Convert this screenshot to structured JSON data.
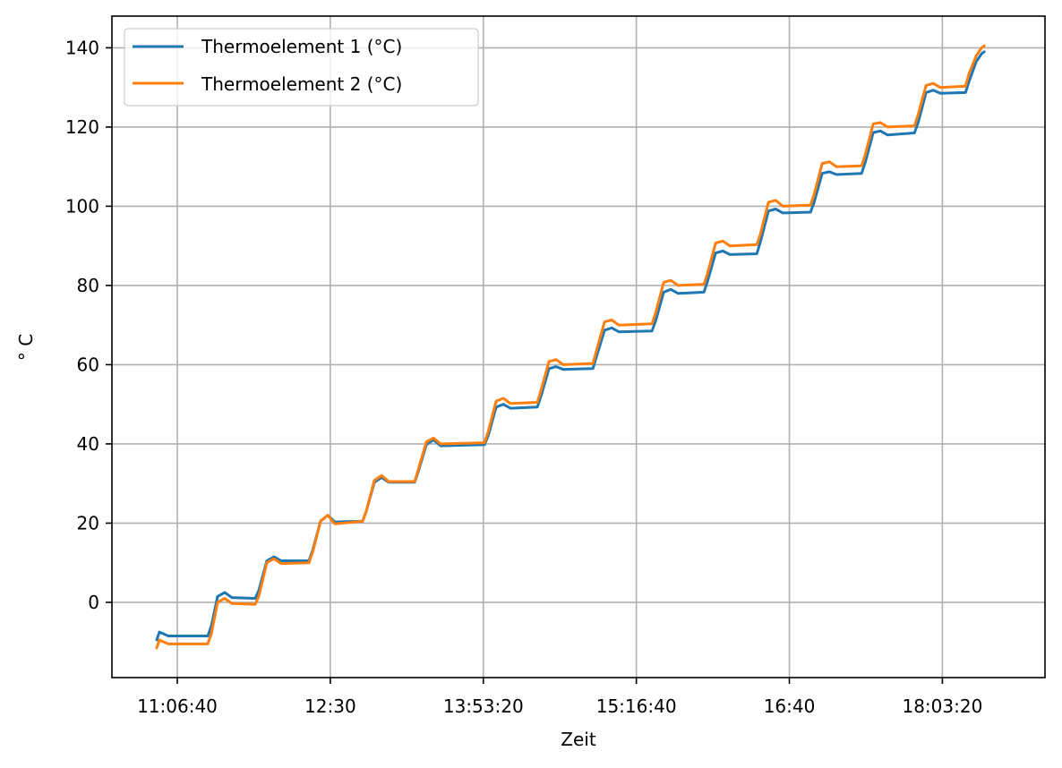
{
  "chart_data": {
    "type": "line",
    "title": "",
    "xlabel": "Zeit",
    "ylabel": "° C",
    "ylim": [
      -19,
      148
    ],
    "yticks": [
      0,
      20,
      40,
      60,
      80,
      100,
      120,
      140
    ],
    "xticks": [
      {
        "label": "11:06:40",
        "seconds": 40000
      },
      {
        "label": "12:30",
        "seconds": 45000
      },
      {
        "label": "13:53:20",
        "seconds": 50000
      },
      {
        "label": "15:16:40",
        "seconds": 55000
      },
      {
        "label": "16:40",
        "seconds": 60000
      },
      {
        "label": "18:03:20",
        "seconds": 65000
      }
    ],
    "xlim_seconds": [
      37864,
      68353
    ],
    "grid": true,
    "legend_position": "upper left",
    "series": [
      {
        "name": "Thermoelement 1 (°C)",
        "color": "#1f77b4",
        "points": [
          [
            39327,
            -9.5
          ],
          [
            39415,
            -7.5
          ],
          [
            39561,
            -8.0
          ],
          [
            39707,
            -8.5
          ],
          [
            40995,
            -8.5
          ],
          [
            41112,
            -6.0
          ],
          [
            41317,
            1.5
          ],
          [
            41551,
            2.5
          ],
          [
            41785,
            1.2
          ],
          [
            42546,
            1.0
          ],
          [
            42663,
            3.0
          ],
          [
            42927,
            10.5
          ],
          [
            43161,
            11.5
          ],
          [
            43395,
            10.5
          ],
          [
            44302,
            10.5
          ],
          [
            44419,
            13.0
          ],
          [
            44683,
            20.5
          ],
          [
            44917,
            22.0
          ],
          [
            45151,
            20.3
          ],
          [
            46058,
            20.5
          ],
          [
            46175,
            23.0
          ],
          [
            46439,
            30.3
          ],
          [
            46673,
            31.5
          ],
          [
            46907,
            30.3
          ],
          [
            47756,
            30.3
          ],
          [
            47873,
            33.0
          ],
          [
            48137,
            39.8
          ],
          [
            48371,
            41.0
          ],
          [
            48605,
            39.5
          ],
          [
            50039,
            39.8
          ],
          [
            50156,
            42.0
          ],
          [
            50420,
            49.3
          ],
          [
            50654,
            50.0
          ],
          [
            50888,
            49.0
          ],
          [
            51766,
            49.3
          ],
          [
            51883,
            52.0
          ],
          [
            52147,
            59.0
          ],
          [
            52381,
            59.5
          ],
          [
            52615,
            58.8
          ],
          [
            53581,
            59.0
          ],
          [
            53698,
            62.0
          ],
          [
            53961,
            68.7
          ],
          [
            54195,
            69.3
          ],
          [
            54429,
            68.3
          ],
          [
            55512,
            68.5
          ],
          [
            55629,
            71.0
          ],
          [
            55893,
            78.3
          ],
          [
            56127,
            79.0
          ],
          [
            56361,
            78.0
          ],
          [
            57209,
            78.3
          ],
          [
            57326,
            81.0
          ],
          [
            57590,
            88.2
          ],
          [
            57824,
            88.7
          ],
          [
            58058,
            87.8
          ],
          [
            58936,
            88.0
          ],
          [
            59053,
            91.0
          ],
          [
            59317,
            98.8
          ],
          [
            59551,
            99.3
          ],
          [
            59785,
            98.3
          ],
          [
            60693,
            98.5
          ],
          [
            60810,
            101.0
          ],
          [
            61073,
            108.3
          ],
          [
            61307,
            108.7
          ],
          [
            61541,
            108.0
          ],
          [
            62360,
            108.3
          ],
          [
            62477,
            111.0
          ],
          [
            62741,
            118.6
          ],
          [
            62975,
            119.0
          ],
          [
            63209,
            118.0
          ],
          [
            64087,
            118.5
          ],
          [
            64204,
            121.0
          ],
          [
            64468,
            128.7
          ],
          [
            64702,
            129.3
          ],
          [
            64936,
            128.5
          ],
          [
            65755,
            128.7
          ],
          [
            65872,
            131.5
          ],
          [
            66106,
            136.5
          ],
          [
            66282,
            138.5
          ],
          [
            66370,
            139.0
          ]
        ]
      },
      {
        "name": "Thermoelement 2 (°C)",
        "color": "#ff7f0e",
        "points": [
          [
            39327,
            -11.5
          ],
          [
            39415,
            -9.5
          ],
          [
            39561,
            -10.0
          ],
          [
            39707,
            -10.5
          ],
          [
            40995,
            -10.5
          ],
          [
            41112,
            -8.0
          ],
          [
            41317,
            0.0
          ],
          [
            41551,
            1.0
          ],
          [
            41785,
            -0.3
          ],
          [
            42546,
            -0.5
          ],
          [
            42663,
            1.5
          ],
          [
            42927,
            10.0
          ],
          [
            43161,
            11.0
          ],
          [
            43395,
            9.8
          ],
          [
            44302,
            10.0
          ],
          [
            44419,
            12.5
          ],
          [
            44683,
            20.5
          ],
          [
            44917,
            22.0
          ],
          [
            45151,
            19.8
          ],
          [
            46058,
            20.5
          ],
          [
            46175,
            23.0
          ],
          [
            46439,
            30.8
          ],
          [
            46673,
            32.0
          ],
          [
            46907,
            30.5
          ],
          [
            47756,
            30.5
          ],
          [
            47873,
            33.5
          ],
          [
            48137,
            40.5
          ],
          [
            48371,
            41.5
          ],
          [
            48605,
            40.0
          ],
          [
            50039,
            40.3
          ],
          [
            50156,
            43.0
          ],
          [
            50420,
            50.8
          ],
          [
            50654,
            51.5
          ],
          [
            50888,
            50.2
          ],
          [
            51766,
            50.5
          ],
          [
            51883,
            53.5
          ],
          [
            52147,
            60.8
          ],
          [
            52381,
            61.3
          ],
          [
            52615,
            60.0
          ],
          [
            53581,
            60.3
          ],
          [
            53698,
            63.5
          ],
          [
            53961,
            70.8
          ],
          [
            54195,
            71.3
          ],
          [
            54429,
            70.0
          ],
          [
            55512,
            70.3
          ],
          [
            55629,
            73.0
          ],
          [
            55893,
            80.8
          ],
          [
            56127,
            81.3
          ],
          [
            56361,
            80.0
          ],
          [
            57209,
            80.3
          ],
          [
            57326,
            83.0
          ],
          [
            57590,
            90.7
          ],
          [
            57824,
            91.2
          ],
          [
            58058,
            90.0
          ],
          [
            58936,
            90.3
          ],
          [
            59053,
            93.0
          ],
          [
            59317,
            101.0
          ],
          [
            59551,
            101.5
          ],
          [
            59785,
            100.0
          ],
          [
            60693,
            100.3
          ],
          [
            60810,
            103.0
          ],
          [
            61073,
            110.8
          ],
          [
            61307,
            111.2
          ],
          [
            61541,
            110.0
          ],
          [
            62360,
            110.2
          ],
          [
            62477,
            113.0
          ],
          [
            62741,
            120.8
          ],
          [
            62975,
            121.1
          ],
          [
            63209,
            120.0
          ],
          [
            64087,
            120.3
          ],
          [
            64204,
            123.0
          ],
          [
            64468,
            130.5
          ],
          [
            64702,
            131.0
          ],
          [
            64936,
            130.0
          ],
          [
            65755,
            130.3
          ],
          [
            65872,
            133.5
          ],
          [
            66106,
            138.0
          ],
          [
            66282,
            140.0
          ],
          [
            66370,
            140.5
          ]
        ]
      }
    ]
  }
}
